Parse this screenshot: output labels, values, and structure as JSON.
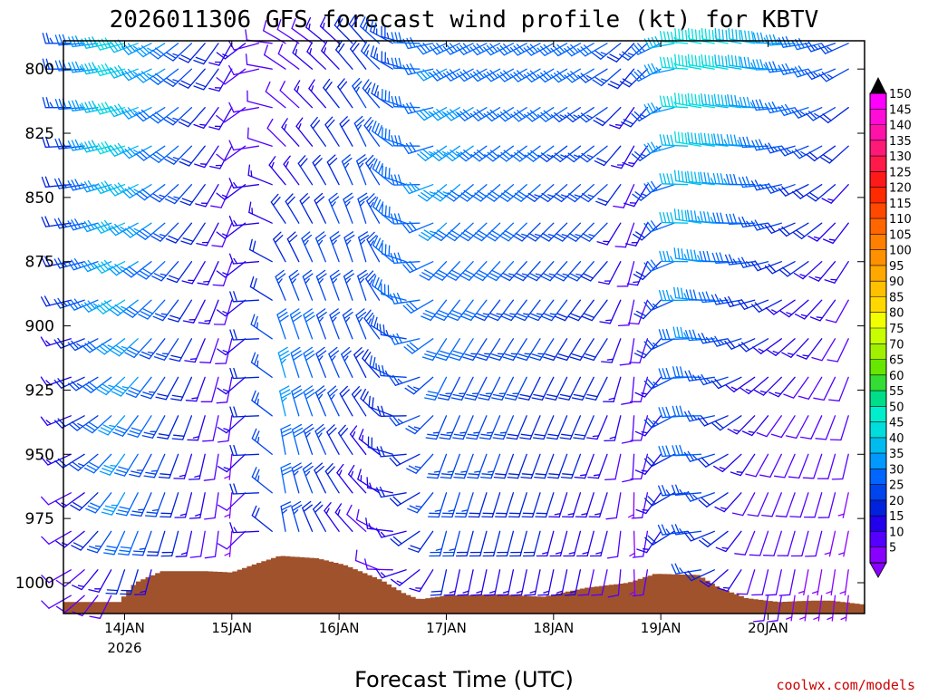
{
  "chart_data": {
    "type": "wind-barb-time-height",
    "title": "2026011306 GFS forecast wind profile (kt) for KBTV",
    "xlabel": "Forecast Time (UTC)",
    "ylabel": "",
    "credit": "coolwx.com/models",
    "y_axis": {
      "unit": "hPa",
      "range": [
        1012,
        789
      ],
      "ticks": [
        "800",
        "825",
        "850",
        "875",
        "900",
        "925",
        "950",
        "975",
        "1000"
      ],
      "tick_values": [
        800,
        825,
        850,
        875,
        900,
        925,
        950,
        975,
        1000
      ]
    },
    "x_axis": {
      "unit": "days since 14JAN 00Z",
      "range": [
        -0.57,
        6.9
      ],
      "ticks": [
        "14JAN",
        "15JAN",
        "16JAN",
        "17JAN",
        "18JAN",
        "19JAN",
        "20JAN"
      ],
      "tick_values": [
        0,
        1,
        2,
        3,
        4,
        5,
        6
      ],
      "sub_label": "2026"
    },
    "levels_hpa": [
      790,
      800,
      815,
      830,
      845,
      860,
      875,
      890,
      905,
      920,
      935,
      950,
      965,
      980,
      995,
      1005
    ],
    "time_step_hours": 3,
    "start_offset_days": -0.5,
    "time_steps": 59,
    "wind_phases": [
      {
        "t": -0.5,
        "speed": [
          25,
          23,
          21,
          19,
          17,
          15,
          13,
          11,
          9
        ],
        "dir": [
          270,
          270,
          265,
          260,
          255,
          250,
          245,
          240,
          240
        ]
      },
      {
        "t": 0.0,
        "speed": [
          45,
          44,
          42,
          40,
          38,
          36,
          34,
          32,
          12
        ],
        "dir": [
          255,
          255,
          250,
          245,
          235,
          225,
          215,
          205,
          195
        ]
      },
      {
        "t": 1.0,
        "speed": [
          14,
          13,
          12,
          10,
          9,
          8,
          7,
          6,
          5
        ],
        "dir": [
          210,
          210,
          205,
          200,
          195,
          190,
          185,
          185,
          180
        ]
      },
      {
        "t": 1.5,
        "speed": [
          8,
          10,
          14,
          20,
          28,
          34,
          32,
          28,
          18
        ],
        "dir": [
          300,
          310,
          320,
          330,
          340,
          345,
          350,
          350,
          350
        ]
      },
      {
        "t": 2.3,
        "speed": [
          22,
          24,
          26,
          27,
          26,
          20,
          14,
          10,
          7
        ],
        "dir": [
          320,
          330,
          340,
          345,
          340,
          330,
          320,
          310,
          300
        ]
      },
      {
        "t": 3.0,
        "speed": [
          32,
          34,
          34,
          32,
          30,
          28,
          26,
          24,
          14
        ],
        "dir": [
          245,
          240,
          230,
          225,
          215,
          205,
          200,
          195,
          190
        ]
      },
      {
        "t": 4.5,
        "speed": [
          28,
          26,
          24,
          22,
          20,
          18,
          16,
          14,
          10
        ],
        "dir": [
          240,
          235,
          228,
          222,
          215,
          205,
          200,
          195,
          190
        ]
      },
      {
        "t": 4.8,
        "speed": [
          18,
          14,
          10,
          8,
          7,
          7,
          6,
          5,
          5
        ],
        "dir": [
          220,
          210,
          200,
          190,
          185,
          180,
          180,
          175,
          175
        ]
      },
      {
        "t": 5.3,
        "speed": [
          48,
          46,
          44,
          40,
          36,
          32,
          30,
          28,
          25
        ],
        "dir": [
          280,
          280,
          280,
          280,
          278,
          276,
          275,
          272,
          270
        ]
      },
      {
        "t": 5.9,
        "speed": [
          40,
          36,
          30,
          25,
          20,
          15,
          12,
          10,
          8
        ],
        "dir": [
          280,
          275,
          270,
          265,
          250,
          230,
          210,
          200,
          190
        ]
      },
      {
        "t": 6.9,
        "speed": [
          22,
          18,
          14,
          11,
          9,
          8,
          7,
          6,
          6
        ],
        "dir": [
          240,
          225,
          215,
          205,
          200,
          195,
          190,
          190,
          185
        ]
      }
    ],
    "terrain_surface_hpa": [
      {
        "t": -0.57,
        "p": 1007.5
      },
      {
        "t": -0.05,
        "p": 1007.5
      },
      {
        "t": 0.1,
        "p": 1000
      },
      {
        "t": 0.35,
        "p": 995.5
      },
      {
        "t": 0.75,
        "p": 995.5
      },
      {
        "t": 1.0,
        "p": 996
      },
      {
        "t": 1.2,
        "p": 993
      },
      {
        "t": 1.45,
        "p": 989.5
      },
      {
        "t": 1.8,
        "p": 990.5
      },
      {
        "t": 2.05,
        "p": 993
      },
      {
        "t": 2.4,
        "p": 999
      },
      {
        "t": 2.6,
        "p": 1004
      },
      {
        "t": 2.75,
        "p": 1006.5
      },
      {
        "t": 3.0,
        "p": 1005
      },
      {
        "t": 3.5,
        "p": 1004.5
      },
      {
        "t": 3.9,
        "p": 1005.5
      },
      {
        "t": 4.3,
        "p": 1002
      },
      {
        "t": 4.7,
        "p": 1000
      },
      {
        "t": 4.95,
        "p": 996.5
      },
      {
        "t": 5.35,
        "p": 997
      },
      {
        "t": 5.55,
        "p": 1002
      },
      {
        "t": 5.8,
        "p": 1006
      },
      {
        "t": 6.1,
        "p": 1007.5
      },
      {
        "t": 6.4,
        "p": 1007
      },
      {
        "t": 6.6,
        "p": 1007
      },
      {
        "t": 6.9,
        "p": 1008.5
      }
    ],
    "terrain_color": "#a0522d",
    "colorbar": {
      "title": "",
      "labels": [
        "150",
        "145",
        "140",
        "135",
        "130",
        "125",
        "120",
        "115",
        "110",
        "105",
        "100",
        "95",
        "90",
        "85",
        "80",
        "75",
        "70",
        "65",
        "60",
        "55",
        "50",
        "45",
        "40",
        "35",
        "30",
        "25",
        "20",
        "15",
        "10",
        "5"
      ],
      "colors": [
        "#ff00ff",
        "#ff0cd6",
        "#ff12a8",
        "#ff1a78",
        "#ff1a4a",
        "#ff1a1a",
        "#ff2a00",
        "#ff4800",
        "#ff6600",
        "#ff7f00",
        "#ff9000",
        "#ffa800",
        "#ffc000",
        "#ffd800",
        "#f2ff00",
        "#c8ff00",
        "#a0f000",
        "#66e600",
        "#33dd33",
        "#00dd88",
        "#00eecc",
        "#00dddd",
        "#00bbee",
        "#0099ff",
        "#0066ff",
        "#0044ee",
        "#0022dd",
        "#2200ee",
        "#5500ff",
        "#8800ff"
      ]
    }
  }
}
